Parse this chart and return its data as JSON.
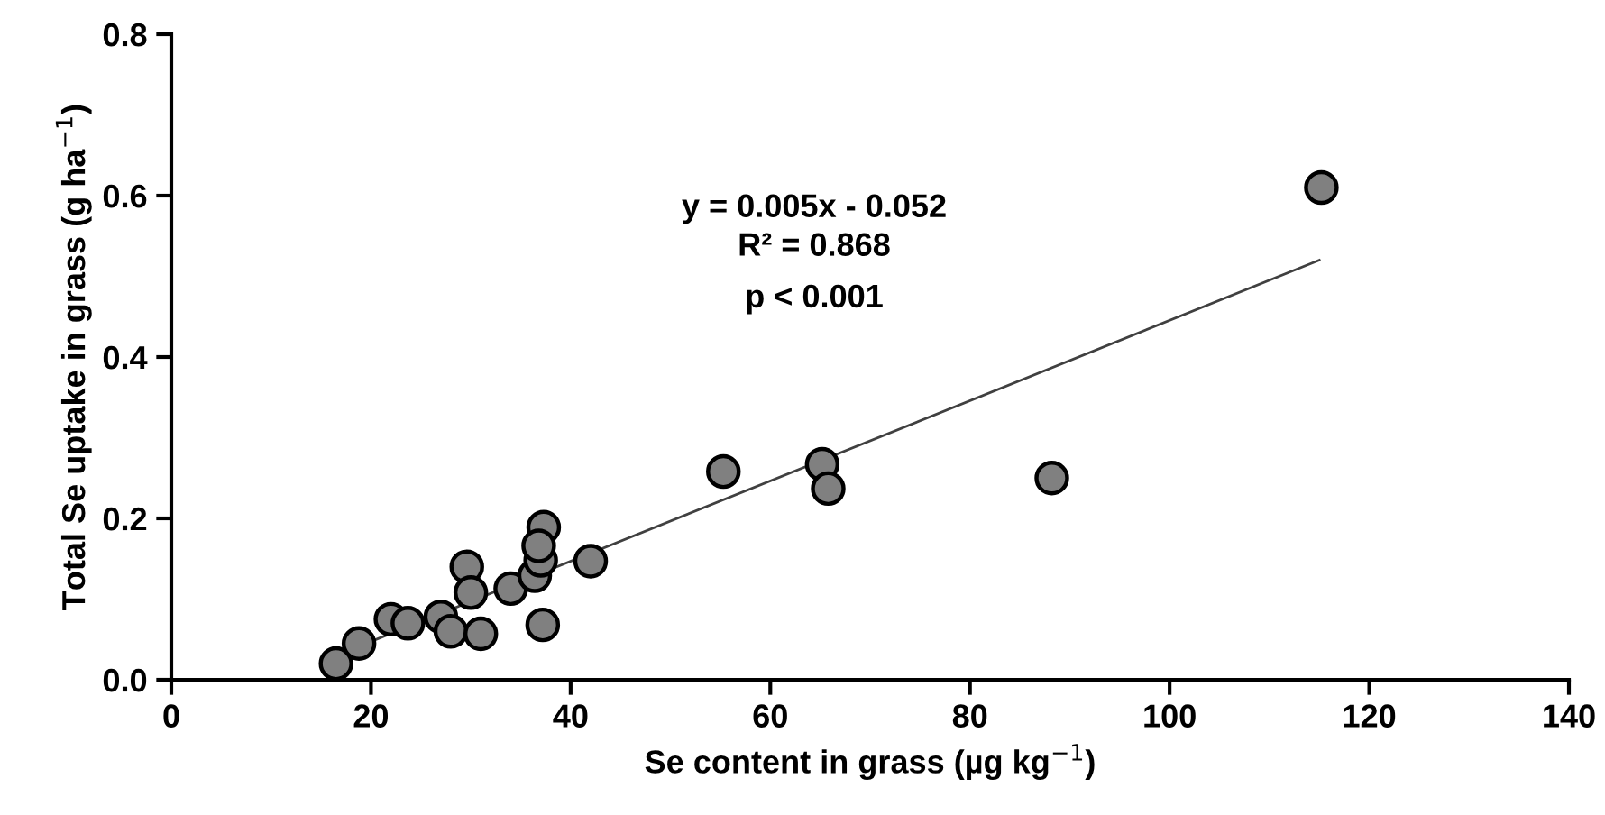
{
  "chart_data": {
    "type": "scatter",
    "xlabel": "Se content in grass (µg kg$^{−1}$)",
    "ylabel": "Total Se uptake in grass (g ha$^{−1}$)",
    "xlim": [
      0,
      140
    ],
    "xticks": [
      0,
      20,
      40,
      60,
      80,
      100,
      120,
      140
    ],
    "ylim": [
      0,
      0.8
    ],
    "yticks": [
      {
        "value": 0,
        "label": "0.0"
      },
      {
        "value": 0.2,
        "label": "0.2"
      },
      {
        "value": 0.4,
        "label": "0.4"
      },
      {
        "value": 0.6,
        "label": "0.6"
      },
      {
        "value": 0.8,
        "label": "0.8"
      }
    ],
    "grid": false,
    "legend": false,
    "series": [
      {
        "marker": "circle",
        "color": "#808080",
        "x": [
          16.5,
          18.8,
          22,
          23.7,
          27,
          28,
          29.6,
          30,
          31,
          34,
          36.4,
          37,
          37.3,
          37.2,
          42,
          55.3,
          65.2,
          65.8,
          88.2,
          115.2,
          36.8
        ],
        "values": [
          0.02,
          0.045,
          0.075,
          0.07,
          0.078,
          0.06,
          0.14,
          0.108,
          0.057,
          0.113,
          0.129,
          0.148,
          0.189,
          0.068,
          0.147,
          0.258,
          0.267,
          0.237,
          0.25,
          0.61,
          0.166
        ]
      },
      {
        "type": "line",
        "color": "#404040",
        "x": [
          16.5,
          115
        ],
        "values": [
          0.03,
          0.52
        ]
      }
    ],
    "annotations": [
      "y = 0.005x - 0.052",
      "R² = 0.868",
      "p < 0.001"
    ]
  }
}
